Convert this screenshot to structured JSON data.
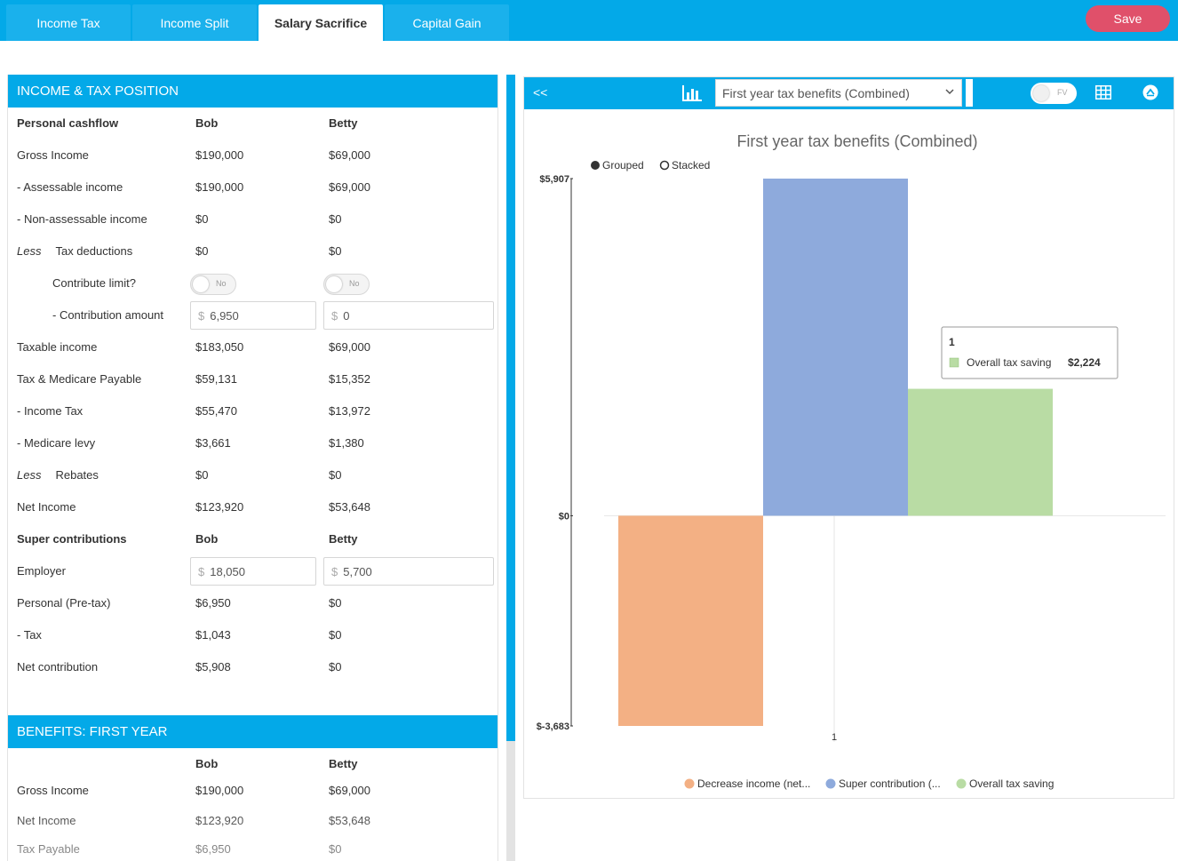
{
  "tabs": [
    {
      "label": "Income Tax",
      "active": false
    },
    {
      "label": "Income Split",
      "active": false
    },
    {
      "label": "Salary Sacrifice",
      "active": true
    },
    {
      "label": "Capital Gain",
      "active": false
    }
  ],
  "save_label": "Save",
  "income_section": {
    "title": "INCOME & TAX POSITION",
    "header": {
      "label": "Personal cashflow",
      "bob": "Bob",
      "betty": "Betty"
    },
    "rows": {
      "gross_income": {
        "label": "Gross Income",
        "bob": "$190,000",
        "betty": "$69,000"
      },
      "assessable_income": {
        "label": "- Assessable income",
        "bob": "$190,000",
        "betty": "$69,000"
      },
      "non_assessable_income": {
        "label": "- Non-assessable income",
        "bob": "$0",
        "betty": "$0"
      },
      "tax_deductions": {
        "less": "Less",
        "label": "Tax deductions",
        "bob": "$0",
        "betty": "$0"
      },
      "contribute_limit": {
        "label": "Contribute limit?",
        "bob_toggle": "No",
        "betty_toggle": "No"
      },
      "contribution_amount": {
        "label": "- Contribution amount",
        "currency": "$",
        "bob": "6,950",
        "betty": "0"
      },
      "taxable_income": {
        "label": "Taxable income",
        "bob": "$183,050",
        "betty": "$69,000"
      },
      "tax_medicare": {
        "label": "Tax & Medicare Payable",
        "bob": "$59,131",
        "betty": "$15,352"
      },
      "income_tax": {
        "label": "- Income Tax",
        "bob": "$55,470",
        "betty": "$13,972"
      },
      "medicare_levy": {
        "label": "- Medicare levy",
        "bob": "$3,661",
        "betty": "$1,380"
      },
      "rebates": {
        "less": "Less",
        "label": "Rebates",
        "bob": "$0",
        "betty": "$0"
      },
      "net_income": {
        "label": "Net Income",
        "bob": "$123,920",
        "betty": "$53,648"
      }
    },
    "super_header": {
      "label": "Super contributions",
      "bob": "Bob",
      "betty": "Betty"
    },
    "super_rows": {
      "employer": {
        "label": "Employer",
        "currency": "$",
        "bob": "18,050",
        "betty": "5,700"
      },
      "personal_pretax": {
        "label": "Personal (Pre-tax)",
        "bob": "$6,950",
        "betty": "$0"
      },
      "tax": {
        "label": "- Tax",
        "bob": "$1,043",
        "betty": "$0"
      },
      "net_contribution": {
        "label": "Net contribution",
        "bob": "$5,908",
        "betty": "$0"
      }
    }
  },
  "benefits_section": {
    "title": "BENEFITS: FIRST YEAR",
    "header": {
      "bob": "Bob",
      "betty": "Betty"
    },
    "rows": {
      "gross_income": {
        "label": "Gross Income",
        "bob": "$190,000",
        "betty": "$69,000"
      },
      "net_income": {
        "label": "Net Income",
        "bob": "$123,920",
        "betty": "$53,648"
      },
      "tax_payable": {
        "label": "Tax Payable",
        "bob": "$6,950",
        "betty": "$0"
      }
    }
  },
  "chart_toolbar": {
    "collapse_label": "<<",
    "selected_chart": "First year tax benefits (Combined)",
    "fv_label": "FV"
  },
  "chart_data": {
    "type": "bar",
    "title": "First year tax benefits (Combined)",
    "mode_options": [
      {
        "label": "Grouped",
        "selected": true
      },
      {
        "label": "Stacked",
        "selected": false
      }
    ],
    "categories": [
      "1"
    ],
    "series": [
      {
        "name": "Decrease income (net...",
        "values": [
          -3683
        ],
        "color": "#f3b084"
      },
      {
        "name": "Super contribution (...",
        "values": [
          5907
        ],
        "color": "#8eaadc"
      },
      {
        "name": "Overall tax saving",
        "values": [
          2224
        ],
        "color": "#b9dca4"
      }
    ],
    "ylim": [
      -3683,
      5907
    ],
    "yticks": [
      {
        "value": 5907,
        "label": "$5,907"
      },
      {
        "value": 0,
        "label": "$0"
      },
      {
        "value": -3683,
        "label": "$-3,683"
      }
    ],
    "legend_position": "bottom",
    "tooltip": {
      "title": "1",
      "series": "Overall tax saving",
      "value": "$2,224"
    }
  }
}
